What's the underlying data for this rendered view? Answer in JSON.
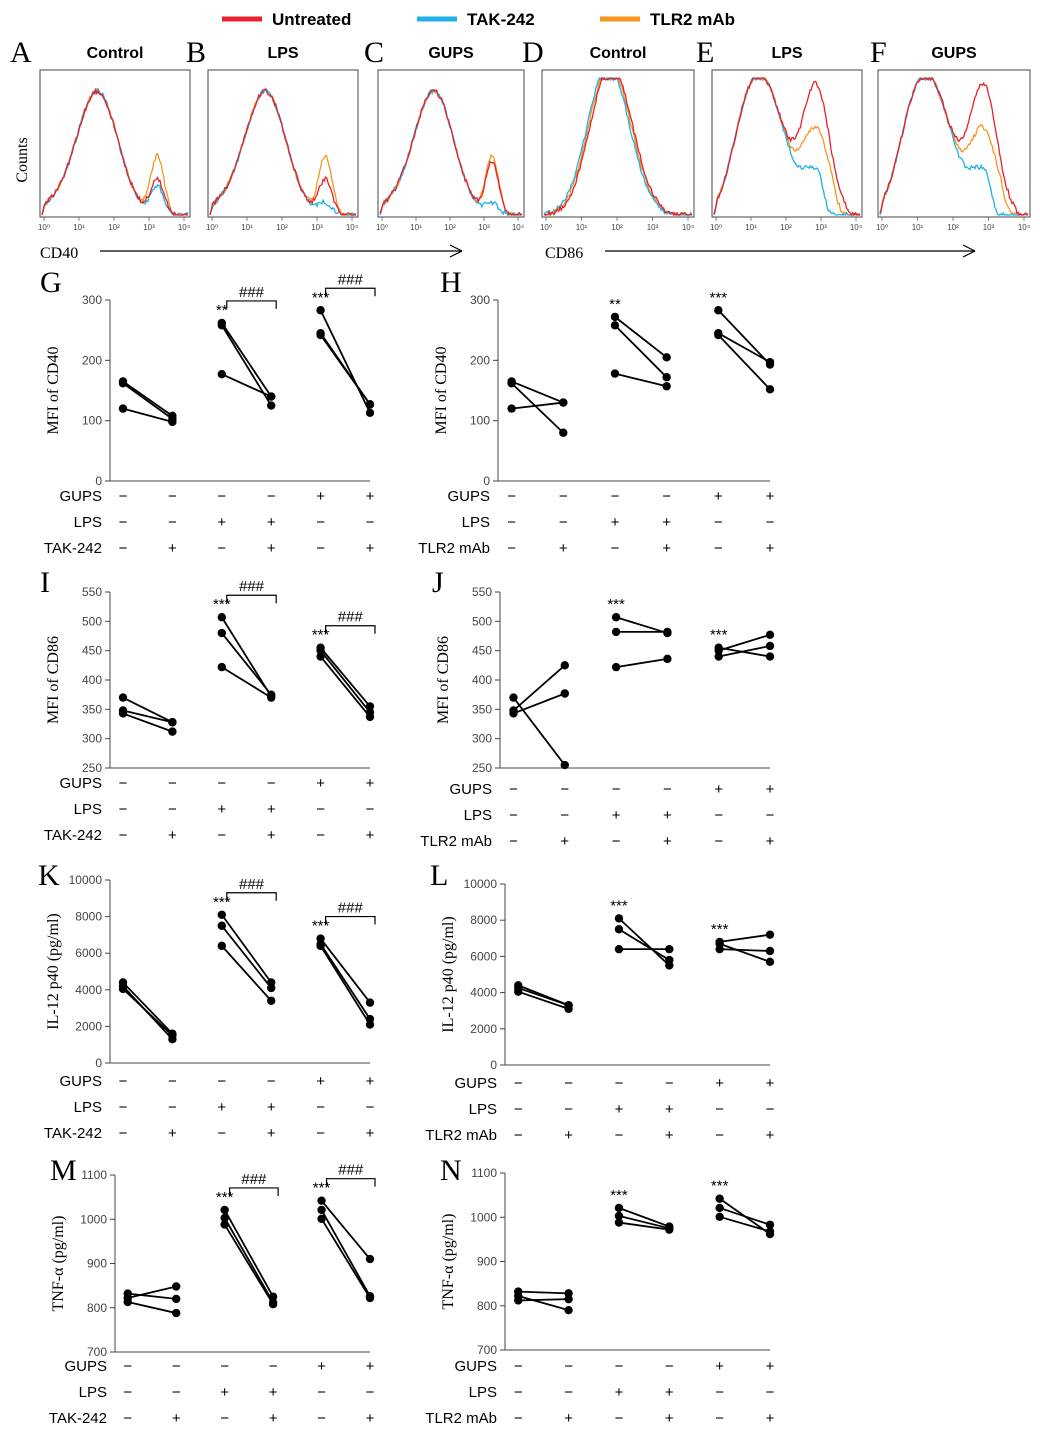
{
  "legend": [
    {
      "label": "Untreated",
      "color": "#e8202a"
    },
    {
      "label": "TAK-242",
      "color": "#1fb1e6"
    },
    {
      "label": "TLR2 mAb",
      "color": "#f7961e"
    }
  ],
  "flow": {
    "ylabel": "Counts",
    "axis_labels": [
      "CD40",
      "CD86"
    ],
    "tick_labels": [
      "10⁰",
      "10¹",
      "10²",
      "10³",
      "10⁴"
    ],
    "panels": [
      {
        "letter": "A",
        "title": "Control"
      },
      {
        "letter": "B",
        "title": "LPS"
      },
      {
        "letter": "C",
        "title": "GUPS"
      },
      {
        "letter": "D",
        "title": "Control"
      },
      {
        "letter": "E",
        "title": "LPS"
      },
      {
        "letter": "F",
        "title": "GUPS"
      }
    ]
  },
  "treatments": {
    "left": [
      "GUPS",
      "LPS",
      "TAK-242"
    ],
    "right": [
      "GUPS",
      "LPS",
      "TLR2 mAb"
    ],
    "symbols": [
      [
        "−",
        "−",
        "−",
        "−",
        "+",
        "+"
      ],
      [
        "−",
        "−",
        "+",
        "+",
        "−",
        "−"
      ],
      [
        "−",
        "+",
        "−",
        "+",
        "−",
        "+"
      ]
    ]
  },
  "chart_data": [
    {
      "panel": "G",
      "type": "scatter",
      "ylabel": "MFI of CD40",
      "ylim": [
        0,
        300
      ],
      "yticks": [
        0,
        100,
        200,
        300
      ],
      "pairs": [
        [
          [
            165,
            108
          ],
          [
            162,
            103
          ],
          [
            120,
            98
          ]
        ],
        [
          [
            262,
            140
          ],
          [
            258,
            125
          ],
          [
            177,
            140
          ]
        ],
        [
          [
            283,
            113
          ],
          [
            245,
            127
          ],
          [
            242,
            127
          ]
        ]
      ],
      "stars": [
        "",
        "**",
        "***"
      ],
      "hash": [
        "",
        "###",
        "###"
      ]
    },
    {
      "panel": "H",
      "type": "scatter",
      "ylabel": "MFI of CD40",
      "ylim": [
        0,
        300
      ],
      "yticks": [
        0,
        100,
        200,
        300
      ],
      "pairs": [
        [
          [
            165,
            130
          ],
          [
            162,
            80
          ],
          [
            120,
            130
          ]
        ],
        [
          [
            272,
            205
          ],
          [
            258,
            172
          ],
          [
            178,
            157
          ]
        ],
        [
          [
            283,
            193
          ],
          [
            245,
            197
          ],
          [
            242,
            152
          ]
        ]
      ],
      "stars": [
        "",
        "**",
        "***"
      ],
      "hash": [
        "",
        "",
        ""
      ]
    },
    {
      "panel": "I",
      "type": "scatter",
      "ylabel": "MFI of CD86",
      "ylim": [
        250,
        550
      ],
      "yticks": [
        250,
        300,
        350,
        400,
        450,
        500,
        550
      ],
      "pairs": [
        [
          [
            370,
            328
          ],
          [
            348,
            328
          ],
          [
            343,
            312
          ]
        ],
        [
          [
            507,
            372
          ],
          [
            480,
            375
          ],
          [
            422,
            370
          ]
        ],
        [
          [
            455,
            355
          ],
          [
            450,
            345
          ],
          [
            440,
            337
          ]
        ]
      ],
      "stars": [
        "",
        "***",
        "***"
      ],
      "hash": [
        "",
        "###",
        "###"
      ]
    },
    {
      "panel": "J",
      "type": "scatter",
      "ylabel": "MFI of CD86",
      "ylim": [
        250,
        550
      ],
      "yticks": [
        250,
        300,
        350,
        400,
        450,
        500,
        550
      ],
      "pairs": [
        [
          [
            370,
            255
          ],
          [
            348,
            425
          ],
          [
            343,
            377
          ]
        ],
        [
          [
            507,
            480
          ],
          [
            482,
            482
          ],
          [
            422,
            436
          ]
        ],
        [
          [
            455,
            440
          ],
          [
            450,
            477
          ],
          [
            440,
            458
          ]
        ]
      ],
      "stars": [
        "",
        "***",
        "***"
      ],
      "hash": [
        "",
        "",
        ""
      ]
    },
    {
      "panel": "K",
      "type": "scatter",
      "ylabel": "IL-12 p40 (pg/ml)",
      "ylim": [
        0,
        10000
      ],
      "yticks": [
        0,
        2000,
        4000,
        6000,
        8000,
        10000
      ],
      "pairs": [
        [
          [
            4400,
            1600
          ],
          [
            4200,
            1300
          ],
          [
            4050,
            1500
          ]
        ],
        [
          [
            8100,
            4400
          ],
          [
            7500,
            4100
          ],
          [
            6400,
            3400
          ]
        ],
        [
          [
            6800,
            3300
          ],
          [
            6500,
            2400
          ],
          [
            6400,
            2100
          ]
        ]
      ],
      "stars": [
        "",
        "***",
        "***"
      ],
      "hash": [
        "",
        "###",
        "###"
      ]
    },
    {
      "panel": "L",
      "type": "scatter",
      "ylabel": "IL-12 p40 (pg/ml)",
      "ylim": [
        0,
        10000
      ],
      "yticks": [
        0,
        2000,
        4000,
        6000,
        8000,
        10000
      ],
      "pairs": [
        [
          [
            4400,
            3300
          ],
          [
            4250,
            3300
          ],
          [
            4050,
            3100
          ]
        ],
        [
          [
            8100,
            5500
          ],
          [
            7500,
            5800
          ],
          [
            6400,
            6400
          ]
        ],
        [
          [
            6800,
            7200
          ],
          [
            6700,
            5700
          ],
          [
            6400,
            6300
          ]
        ]
      ],
      "stars": [
        "",
        "***",
        "***"
      ],
      "hash": [
        "",
        "",
        ""
      ]
    },
    {
      "panel": "M",
      "type": "scatter",
      "ylabel": "TNF-α (pg/ml)",
      "ylim": [
        700,
        1100
      ],
      "yticks": [
        700,
        800,
        900,
        1000,
        1100
      ],
      "pairs": [
        [
          [
            832,
            820
          ],
          [
            822,
            848
          ],
          [
            813,
            788
          ]
        ],
        [
          [
            1021,
            825
          ],
          [
            1003,
            812
          ],
          [
            988,
            808
          ]
        ],
        [
          [
            1042,
            910
          ],
          [
            1021,
            826
          ],
          [
            1001,
            822
          ]
        ]
      ],
      "stars": [
        "",
        "***",
        "***"
      ],
      "hash": [
        "",
        "###",
        "###"
      ]
    },
    {
      "panel": "N",
      "type": "scatter",
      "ylabel": "TNF-α (pg/ml)",
      "ylim": [
        700,
        1100
      ],
      "yticks": [
        700,
        800,
        900,
        1000,
        1100
      ],
      "pairs": [
        [
          [
            832,
            828
          ],
          [
            822,
            790
          ],
          [
            812,
            815
          ]
        ],
        [
          [
            1021,
            979
          ],
          [
            1003,
            975
          ],
          [
            988,
            972
          ]
        ],
        [
          [
            1042,
            962
          ],
          [
            1021,
            983
          ],
          [
            1001,
            968
          ]
        ]
      ],
      "stars": [
        "",
        "***",
        "***"
      ],
      "hash": [
        "",
        "",
        ""
      ]
    }
  ]
}
